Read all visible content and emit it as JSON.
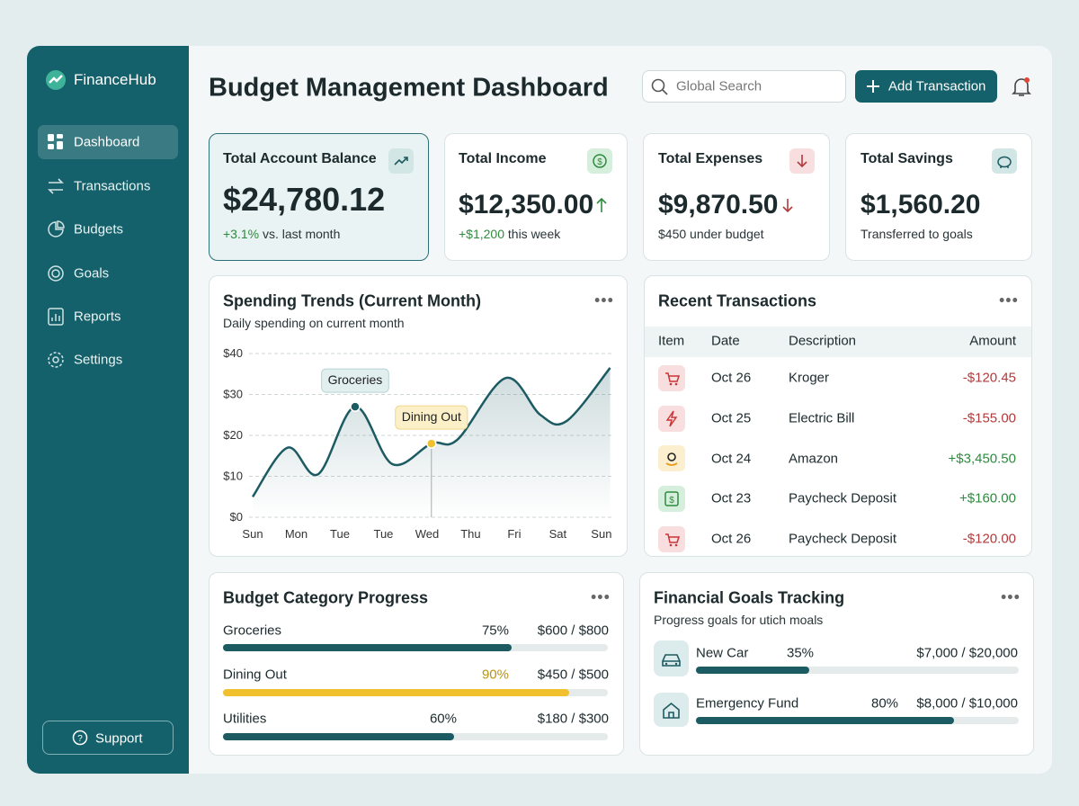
{
  "sidebar": {
    "brand": "FinanceHub",
    "nav": [
      "Dashboard",
      "Transactions",
      "Budgets",
      "Goals",
      "Reports",
      "Settings"
    ],
    "support": "Support"
  },
  "header": {
    "title": "Budget Management Dashboard",
    "search_placeholder": "Global Search",
    "add_button": "Add Transaction"
  },
  "kpis": [
    {
      "label": "Total Account Balance",
      "value": "$24,780.12",
      "change": "+3.1%",
      "note": "vs. last month"
    },
    {
      "label": "Total Income",
      "value": "$12,350.00",
      "change": "+$1,200",
      "note": "this week"
    },
    {
      "label": "Total Expenses",
      "value": "$9,870.50",
      "note": "$450 under budget"
    },
    {
      "label": "Total Savings",
      "value": "$1,560.20",
      "note": "Transferred to goals"
    }
  ],
  "chart_data": {
    "type": "line",
    "title": "Spending Trends (Current Month)",
    "subtitle": "Daily spending on current month",
    "color": "#1d5b63",
    "x": [
      0,
      0.8,
      1.5,
      2.35,
      3.2,
      4.1,
      4.7,
      5.8,
      6.6,
      7.2,
      8.2
    ],
    "values": [
      5,
      17,
      10.5,
      27,
      13,
      18,
      19,
      34,
      25,
      23.5,
      36.5
    ],
    "xlim": [
      0,
      8.25
    ],
    "xticks": [
      {
        "value": 0,
        "label": "Sun"
      },
      {
        "value": 1,
        "label": "Mon"
      },
      {
        "value": 2,
        "label": "Tue"
      },
      {
        "value": 3,
        "label": "Tue"
      },
      {
        "value": 4,
        "label": "Wed"
      },
      {
        "value": 5,
        "label": "Thu"
      },
      {
        "value": 6,
        "label": "Fri"
      },
      {
        "value": 7,
        "label": "Sat"
      },
      {
        "value": 8,
        "label": "Sun"
      }
    ],
    "ylim": [
      0,
      40
    ],
    "yticks": [
      {
        "value": 0,
        "label": "$0"
      },
      {
        "value": 10,
        "label": "$10"
      },
      {
        "value": 20,
        "label": "$20"
      },
      {
        "value": 30,
        "label": "$30"
      },
      {
        "value": 40,
        "label": "$40"
      }
    ],
    "grid": true,
    "annotations": [
      {
        "text": "Groceries",
        "x": 2.35,
        "value": 27,
        "color": "#1d5b63"
      },
      {
        "text": "Dining Out",
        "x": 4.1,
        "value": 18,
        "color": "#f0c02f"
      }
    ]
  },
  "transactions": {
    "title": "Recent Transactions",
    "columns": [
      "Item",
      "Date",
      "Description",
      "Amount"
    ],
    "rows": [
      [
        "Oct 26",
        "Kroger",
        "-$120.45"
      ],
      [
        "Oct 25",
        "Electric Bill",
        "-$155.00"
      ],
      [
        "Oct 24",
        "Amazon",
        "+$3,450.50"
      ],
      [
        "Oct 23",
        "Paycheck Deposit",
        "+$160.00"
      ],
      [
        "Oct 26",
        "Paycheck Deposit",
        "-$120.00"
      ]
    ]
  },
  "budget": {
    "title": "Budget Category Progress",
    "rows": [
      {
        "name": "Groceries",
        "progress": {
          "value": 75,
          "label": "75%"
        },
        "amount": "$600 / $800",
        "color": "#1d5b63"
      },
      {
        "name": "Dining Out",
        "progress": {
          "value": 90,
          "label": "90%"
        },
        "amount": "$450 / $500",
        "color": "#f0c02f"
      },
      {
        "name": "Utilities",
        "progress": {
          "value": 60,
          "label": "60%"
        },
        "amount": "$180 / $300",
        "color": "#1d5b63"
      }
    ]
  },
  "goals": {
    "title": "Financial Goals Tracking",
    "subtitle": "Progress goals for utich moals",
    "rows": [
      {
        "name": "New Car",
        "progress": {
          "value": 35,
          "label": "35%"
        },
        "amount": "$7,000 / $20,000"
      },
      {
        "name": "Emergency Fund",
        "progress": {
          "value": 80,
          "label": "80%"
        },
        "amount": "$8,000 / $10,000"
      }
    ]
  }
}
